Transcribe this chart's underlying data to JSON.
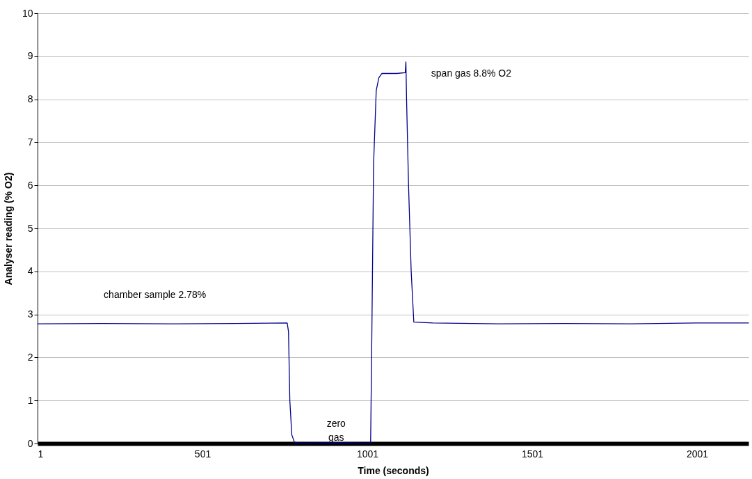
{
  "chart_data": {
    "type": "line",
    "xlabel": "Time (seconds)",
    "ylabel": "Analyser reading (% O2)",
    "x": [
      1,
      200,
      400,
      600,
      758,
      762,
      766,
      772,
      780,
      800,
      900,
      1000,
      1011,
      1014,
      1020,
      1028,
      1036,
      1045,
      1060,
      1090,
      1116,
      1118,
      1120,
      1126,
      1134,
      1142,
      1200,
      1400,
      1600,
      1800,
      2000,
      2157
    ],
    "series": [
      {
        "color": "#00008b",
        "values": [
          2.78,
          2.79,
          2.78,
          2.79,
          2.8,
          2.6,
          1.0,
          0.2,
          0.03,
          0.01,
          0.02,
          0.01,
          0.02,
          2.0,
          6.5,
          8.2,
          8.5,
          8.6,
          8.6,
          8.6,
          8.62,
          8.87,
          8.0,
          6.0,
          4.0,
          2.82,
          2.8,
          2.78,
          2.79,
          2.78,
          2.8,
          2.8
        ]
      }
    ],
    "xlim": [
      1,
      2157
    ],
    "xticks": [
      1,
      501,
      1001,
      1501,
      2001
    ],
    "ylim": [
      0,
      10
    ],
    "yticks": [
      0,
      1,
      2,
      3,
      4,
      5,
      6,
      7,
      8,
      9,
      10
    ],
    "grid": "y",
    "marker": "none",
    "line_style": "solid",
    "annotations": [
      "chamber sample 2.78%",
      "zero\ngas",
      "span gas 8.8% O2"
    ]
  }
}
